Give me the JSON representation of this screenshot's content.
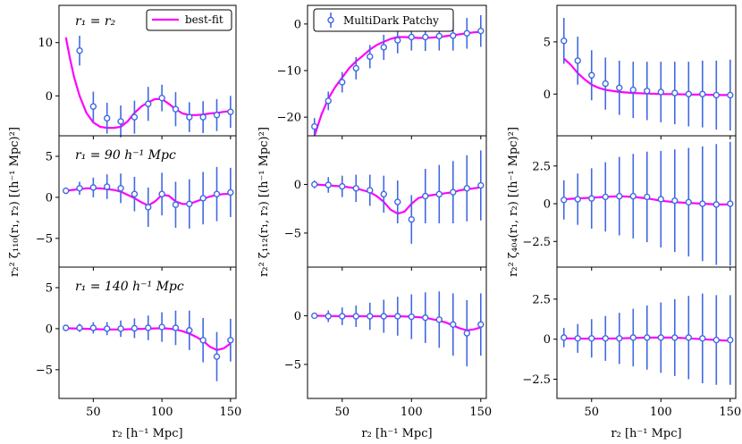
{
  "chart_data": {
    "type": "line",
    "x": [
      30,
      40,
      50,
      60,
      70,
      80,
      90,
      100,
      110,
      120,
      130,
      140,
      150
    ],
    "xlim": [
      25,
      154
    ],
    "xticks": [
      50,
      100,
      150
    ],
    "xlabel": "r₂  [h⁻¹ Mpc]",
    "ylabels": [
      "r₂² ζ₁₁₀(r₁, r₂) [(h⁻¹ Mpc)²]",
      "r₂² ζ₁₁₂(r₁, r₂) [(h⁻¹ Mpc)²]",
      "r₂² ζ₄₀₄(r₁, r₂) [(h⁻¹ Mpc)²]"
    ],
    "row_labels": [
      "r₁ = r₂",
      "r₁ = 90 h⁻¹ Mpc",
      "r₁ = 140 h⁻¹ Mpc"
    ],
    "legend": {
      "best_fit": "best-fit",
      "data": "MultiDark Patchy"
    },
    "colors": {
      "model": "#ff00ff",
      "data": "#4169e1",
      "marker_fill": "#ffffff"
    },
    "panels": [
      [
        {
          "ylim": [
            -7.5,
            17
          ],
          "yticks": [
            -0.0,
            10
          ],
          "data": [
            null,
            8.5,
            -2,
            -4.2,
            -4.8,
            -4,
            -1.5,
            -0.4,
            -2.5,
            -4,
            -4,
            -3.6,
            -3
          ],
          "err": [
            null,
            2.8,
            2.8,
            2.9,
            3,
            3.1,
            3.2,
            2.5,
            3.2,
            2.8,
            3,
            3,
            3
          ],
          "fit_x": [
            30,
            33,
            36,
            40,
            45,
            50,
            55,
            60,
            65,
            70,
            75,
            80,
            85,
            90,
            95,
            100,
            105,
            110,
            115,
            120,
            125,
            130,
            135,
            140,
            145,
            150
          ],
          "fit_y": [
            11,
            7,
            3.5,
            0,
            -3.2,
            -5,
            -5.8,
            -6,
            -6,
            -5.8,
            -4.8,
            -3.2,
            -2,
            -1.2,
            -0.6,
            -0.6,
            -1.5,
            -2.5,
            -3.3,
            -3.6,
            -3.6,
            -3.5,
            -3.3,
            -3.2,
            -3,
            -2.8
          ]
        },
        {
          "ylim": [
            -24,
            4
          ],
          "yticks": [
            -20,
            -10,
            0
          ],
          "data": [
            -22,
            -16.5,
            -12.5,
            -9.5,
            -7,
            -5,
            -3.5,
            -2.8,
            -2.8,
            -2.6,
            -2.5,
            -2,
            -1.5
          ],
          "err": [
            1.8,
            2,
            2.2,
            2.4,
            2.5,
            2.7,
            2.8,
            2.9,
            3,
            3.1,
            3.2,
            3.3,
            3.4
          ],
          "fit_x": [
            30,
            35,
            40,
            45,
            50,
            55,
            60,
            65,
            70,
            75,
            80,
            85,
            90,
            95,
            100,
            105,
            110,
            115,
            120,
            125,
            130,
            135,
            140,
            145,
            150
          ],
          "fit_y": [
            -24,
            -19.5,
            -16,
            -13.5,
            -11.5,
            -9.5,
            -8,
            -6.8,
            -5.5,
            -4.5,
            -3.8,
            -3.2,
            -2.8,
            -2.8,
            -2.9,
            -3,
            -3,
            -2.9,
            -2.8,
            -2.6,
            -2.4,
            -2.2,
            -2,
            -1.8,
            -1.7
          ]
        },
        {
          "ylim": [
            -4,
            8.5
          ],
          "yticks": [
            0,
            5
          ],
          "data": [
            5.1,
            3.2,
            1.8,
            1.0,
            0.6,
            0.4,
            0.3,
            0.2,
            0.1,
            0.0,
            0.0,
            -0.1,
            -0.1
          ],
          "err": [
            2.2,
            2.3,
            2.4,
            2.5,
            2.6,
            2.7,
            2.8,
            2.9,
            3.0,
            3.1,
            3.2,
            3.3,
            3.4
          ],
          "fit_x": [
            30,
            35,
            40,
            45,
            50,
            55,
            60,
            70,
            80,
            90,
            100,
            110,
            120,
            130,
            140,
            150
          ],
          "fit_y": [
            3.4,
            2.8,
            2.0,
            1.4,
            0.9,
            0.6,
            0.4,
            0.2,
            0.1,
            0.05,
            0.0,
            0.0,
            -0.05,
            -0.05,
            -0.1,
            -0.1
          ]
        }
      ],
      [
        {
          "ylim": [
            -8.5,
            7.5
          ],
          "yticks": [
            -5,
            0,
            5
          ],
          "data": [
            0.8,
            1.1,
            1.2,
            1.3,
            1.1,
            0.4,
            -1.2,
            0.4,
            -0.9,
            -0.8,
            -0.1,
            0.4,
            0.6
          ],
          "err": [
            0.4,
            0.8,
            1.2,
            1.5,
            1.8,
            2.1,
            2.4,
            2.6,
            2.8,
            3.0,
            3.2,
            3.3,
            3.0
          ],
          "fit_x": [
            30,
            35,
            40,
            45,
            50,
            55,
            60,
            65,
            70,
            75,
            80,
            85,
            90,
            95,
            100,
            105,
            110,
            115,
            120,
            125,
            130,
            135,
            140,
            145,
            150
          ],
          "fit_y": [
            0.8,
            0.9,
            1.0,
            1.1,
            1.1,
            1.1,
            1.0,
            0.9,
            0.7,
            0.3,
            -0.1,
            -0.6,
            -1.0,
            -0.5,
            0.3,
            0.2,
            -0.5,
            -0.8,
            -0.8,
            -0.5,
            -0.2,
            0.1,
            0.3,
            0.4,
            0.4
          ]
        },
        {
          "ylim": [
            -8.5,
            5
          ],
          "yticks": [
            -5,
            0
          ],
          "data": [
            0.0,
            -0.05,
            -0.2,
            -0.4,
            -0.6,
            -1.0,
            -1.8,
            -3.6,
            -1.2,
            -1.0,
            -0.8,
            -0.4,
            -0.1
          ],
          "err": [
            0.4,
            0.8,
            1.1,
            1.4,
            1.6,
            1.9,
            2.2,
            2.5,
            2.8,
            3.0,
            3.2,
            3.4,
            3.6
          ],
          "fit_x": [
            30,
            35,
            40,
            45,
            50,
            55,
            60,
            65,
            70,
            75,
            80,
            85,
            90,
            95,
            100,
            105,
            110,
            115,
            120,
            125,
            130,
            135,
            140,
            145,
            150
          ],
          "fit_y": [
            0.0,
            -0.05,
            -0.1,
            -0.15,
            -0.2,
            -0.3,
            -0.4,
            -0.6,
            -0.8,
            -1.2,
            -1.8,
            -2.6,
            -3.0,
            -2.8,
            -2.0,
            -1.4,
            -1.2,
            -1.1,
            -1.0,
            -0.9,
            -0.8,
            -0.6,
            -0.5,
            -0.4,
            -0.3
          ]
        },
        {
          "ylim": [
            -4.2,
            4.5
          ],
          "yticks": [
            -2.5,
            0.0,
            2.5
          ],
          "data": [
            0.25,
            0.3,
            0.35,
            0.45,
            0.5,
            0.5,
            0.45,
            0.3,
            0.2,
            0.1,
            0.0,
            -0.05,
            0.0
          ],
          "err": [
            1.3,
            1.7,
            2.0,
            2.3,
            2.6,
            2.8,
            3.0,
            3.2,
            3.4,
            3.6,
            3.8,
            4.0,
            4.1
          ],
          "fit_x": [
            30,
            40,
            50,
            60,
            70,
            80,
            90,
            100,
            110,
            120,
            130,
            140,
            150
          ],
          "fit_y": [
            0.3,
            0.35,
            0.4,
            0.45,
            0.5,
            0.45,
            0.35,
            0.2,
            0.1,
            0.05,
            0.0,
            -0.05,
            -0.05
          ]
        }
      ],
      [
        {
          "ylim": [
            -8.5,
            7.5
          ],
          "yticks": [
            -5,
            0,
            5
          ],
          "data": [
            0.1,
            0.1,
            0.1,
            0.0,
            0.0,
            0.05,
            0.1,
            0.2,
            0.1,
            -0.2,
            -1.4,
            -3.4,
            -1.4
          ],
          "err": [
            0.3,
            0.5,
            0.7,
            0.8,
            1.0,
            1.2,
            1.5,
            1.8,
            2.1,
            2.4,
            2.7,
            3.0,
            2.6
          ],
          "fit_x": [
            30,
            40,
            50,
            60,
            70,
            80,
            90,
            100,
            105,
            110,
            115,
            120,
            125,
            130,
            135,
            140,
            145,
            150
          ],
          "fit_y": [
            0.05,
            0.0,
            -0.05,
            -0.1,
            -0.1,
            -0.05,
            0.0,
            0.05,
            0.0,
            -0.1,
            -0.3,
            -0.6,
            -1.0,
            -1.5,
            -2.2,
            -2.6,
            -2.4,
            -1.8
          ]
        },
        {
          "ylim": [
            -8.5,
            5
          ],
          "yticks": [
            -5,
            0
          ],
          "data": [
            0.0,
            -0.05,
            -0.05,
            -0.05,
            -0.05,
            -0.05,
            -0.05,
            -0.1,
            -0.2,
            -0.4,
            -0.9,
            -1.8,
            -0.9
          ],
          "err": [
            0.3,
            0.6,
            0.9,
            1.1,
            1.4,
            1.7,
            2.0,
            2.3,
            2.6,
            2.9,
            3.2,
            3.4,
            3.2
          ],
          "fit_x": [
            30,
            40,
            50,
            60,
            70,
            80,
            90,
            100,
            110,
            115,
            120,
            125,
            130,
            135,
            140,
            145,
            150
          ],
          "fit_y": [
            0.0,
            -0.02,
            -0.05,
            -0.05,
            -0.05,
            -0.05,
            -0.05,
            -0.1,
            -0.2,
            -0.35,
            -0.5,
            -0.7,
            -1.0,
            -1.3,
            -1.5,
            -1.4,
            -1.2
          ]
        },
        {
          "ylim": [
            -3.7,
            4.5
          ],
          "yticks": [
            -2.5,
            0.0,
            2.5
          ],
          "data": [
            0.1,
            0.05,
            0.05,
            0.05,
            0.05,
            0.1,
            0.1,
            0.1,
            0.1,
            0.1,
            0.05,
            -0.05,
            -0.05
          ],
          "err": [
            0.6,
            0.9,
            1.2,
            1.4,
            1.6,
            1.8,
            2.0,
            2.2,
            2.4,
            2.6,
            2.8,
            2.8,
            2.8
          ],
          "fit_x": [
            30,
            50,
            70,
            90,
            110,
            130,
            150
          ],
          "fit_y": [
            0.05,
            0.03,
            0.05,
            0.1,
            0.1,
            0.0,
            -0.1
          ]
        }
      ]
    ]
  }
}
